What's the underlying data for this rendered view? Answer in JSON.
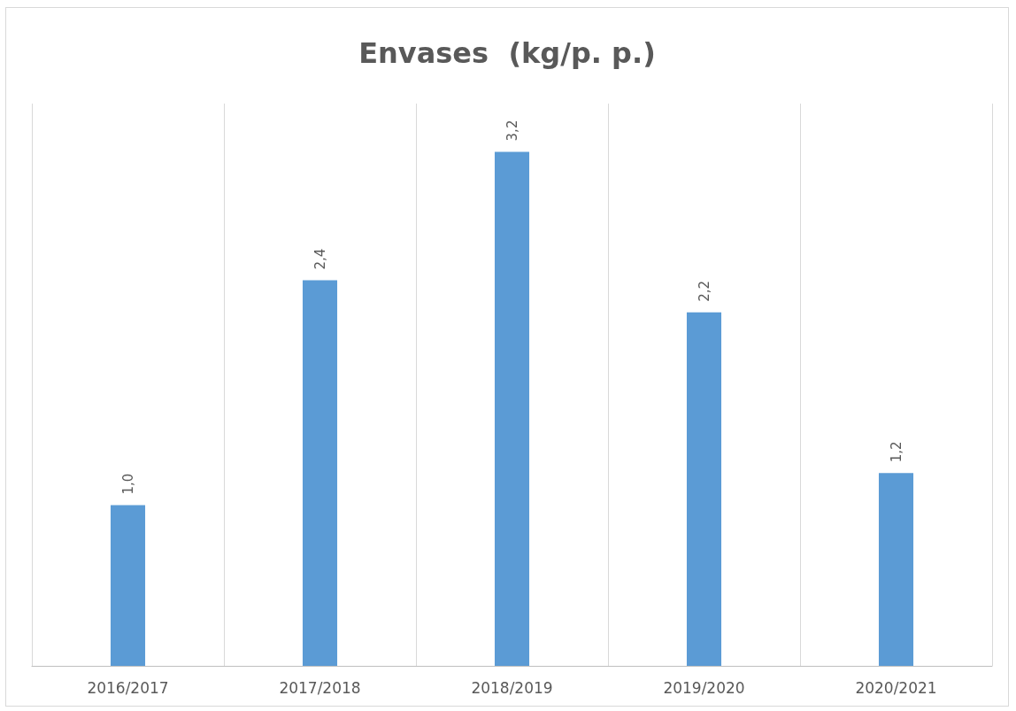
{
  "chart_data": {
    "type": "bar",
    "title": "Envases  (kg/p. p.)",
    "categories": [
      "2016/2017",
      "2017/2018",
      "2018/2019",
      "2019/2020",
      "2020/2021"
    ],
    "values": [
      1.0,
      2.4,
      3.2,
      2.2,
      1.2
    ],
    "value_labels": [
      "1,0",
      "2,4",
      "3,2",
      "2,2",
      "1,2"
    ],
    "color": "#5b9bd5",
    "grid": "x"
  }
}
